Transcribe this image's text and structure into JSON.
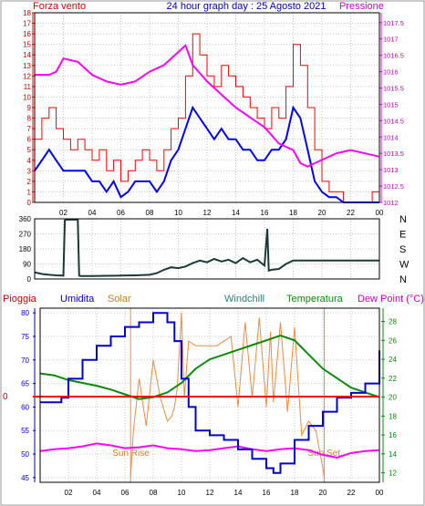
{
  "colors": {
    "wind": "#ff0000",
    "gust": "#0000ff",
    "pressure": "#ff00ff",
    "direction": "#1a3a3a",
    "rain": "#ff0000",
    "humidity": "#0000cc",
    "solar": "#f08a40",
    "windchill": "#2a8080",
    "temperature": "#0a8a0a",
    "dewpoint": "#ff00ff",
    "grid": "#c8c8c8",
    "axis": "#000000",
    "frame": "#9a9a9a"
  },
  "chart_data": [
    {
      "type": "line",
      "title": "24 hour graph day : 25 Agosto 2021",
      "left_label": "Forza vento",
      "right_label": "Pressione",
      "xlim": [
        0,
        24
      ],
      "x_ticks": [
        "02",
        "04",
        "06",
        "08",
        "10",
        "12",
        "14",
        "16",
        "18",
        "20",
        "22",
        "00"
      ],
      "ylim": [
        0,
        18
      ],
      "y_ticks": [
        "0",
        "1",
        "2",
        "3",
        "4",
        "5",
        "6",
        "7",
        "8",
        "9",
        "10",
        "11",
        "12",
        "13",
        "14",
        "15",
        "16",
        "17",
        "18"
      ],
      "y2lim": [
        1012,
        1017.8
      ],
      "y2_ticks": [
        "1012",
        "1012.5",
        "1013",
        "1013.5",
        "1014",
        "1014.5",
        "1015",
        "1015.5",
        "1016",
        "1016.5",
        "1017",
        "1017.5"
      ],
      "grid": true,
      "series": [
        {
          "key": "wind",
          "x": [
            0,
            0.5,
            1,
            1.5,
            2,
            2.5,
            3,
            3.5,
            4,
            4.5,
            5,
            5.5,
            6,
            6.5,
            7,
            7.5,
            8,
            8.5,
            9,
            9.5,
            10,
            10.5,
            11,
            11.5,
            12,
            12.5,
            13,
            13.5,
            14,
            14.5,
            15,
            15.5,
            16,
            16.5,
            17,
            17.5,
            18,
            18.5,
            19,
            19.5,
            20,
            20.5,
            21,
            21.5,
            22,
            22.5,
            23,
            23.5,
            24
          ],
          "y": [
            6,
            8,
            9,
            7,
            6,
            5,
            6,
            5,
            4,
            5,
            3,
            4,
            2,
            3,
            4,
            5,
            4,
            3,
            5,
            7,
            8,
            12,
            16,
            14,
            12,
            11,
            13,
            12,
            11,
            10,
            9,
            8,
            7,
            9,
            8,
            11,
            15,
            13,
            9,
            5,
            2,
            1,
            1,
            0,
            0,
            0,
            0,
            1,
            1
          ]
        },
        {
          "key": "gust",
          "x": [
            0,
            0.5,
            1,
            1.5,
            2,
            2.5,
            3,
            3.5,
            4,
            4.5,
            5,
            5.5,
            6,
            6.5,
            7,
            7.5,
            8,
            8.5,
            9,
            9.5,
            10,
            10.5,
            11,
            11.5,
            12,
            12.5,
            13,
            13.5,
            14,
            14.5,
            15,
            15.5,
            16,
            16.5,
            17,
            17.5,
            18,
            18.5,
            19,
            19.5,
            20,
            20.5,
            21,
            21.5,
            22,
            22.5,
            23,
            23.5,
            24
          ],
          "y": [
            3,
            4,
            5,
            4,
            3,
            3,
            3,
            3,
            2,
            2,
            1,
            2,
            0.5,
            1,
            2,
            2,
            2,
            1,
            2,
            4,
            5,
            7,
            9,
            8,
            7,
            6,
            7,
            6,
            6,
            5,
            5,
            4,
            4,
            5,
            5,
            6,
            9,
            8,
            5,
            2,
            1,
            0.5,
            0.5,
            0,
            0,
            0,
            0,
            0,
            0
          ]
        },
        {
          "key": "pressure",
          "x": [
            0,
            1,
            1.5,
            2,
            3,
            4,
            5,
            6,
            7,
            8,
            9,
            10,
            10.5,
            11,
            12,
            13,
            14,
            15,
            16,
            17,
            18,
            18.5,
            19,
            20,
            21,
            22,
            23,
            24
          ],
          "y": [
            1015.9,
            1015.9,
            1016.0,
            1016.4,
            1016.3,
            1015.9,
            1015.7,
            1015.6,
            1015.7,
            1016.0,
            1016.2,
            1016.6,
            1016.8,
            1016.2,
            1015.7,
            1015.3,
            1014.9,
            1014.6,
            1014.3,
            1013.8,
            1013.6,
            1013.2,
            1013.1,
            1013.3,
            1013.5,
            1013.6,
            1013.5,
            1013.4
          ]
        }
      ]
    },
    {
      "type": "line",
      "title": "",
      "xlim": [
        0,
        24
      ],
      "ylim": [
        0,
        360
      ],
      "y_ticks": [
        "0",
        "90",
        "180",
        "270",
        "360"
      ],
      "y2_ticks": [
        "N",
        "W",
        "S",
        "E",
        "N"
      ],
      "grid": true,
      "series": [
        {
          "key": "direction",
          "x": [
            0,
            0.5,
            1,
            1.5,
            2,
            2.1,
            2.2,
            3,
            3.1,
            3.2,
            4,
            5,
            6,
            7,
            8,
            8.5,
            9,
            9.5,
            10,
            10.5,
            11,
            11.5,
            12,
            12.5,
            13,
            13.5,
            14,
            14.5,
            15,
            15.5,
            16,
            16.2,
            16.3,
            16.5,
            17,
            17.5,
            18,
            19,
            20,
            21,
            22,
            23,
            24
          ],
          "y": [
            40,
            30,
            25,
            22,
            20,
            350,
            355,
            355,
            20,
            18,
            18,
            19,
            20,
            22,
            25,
            35,
            55,
            70,
            65,
            75,
            95,
            110,
            100,
            120,
            105,
            115,
            95,
            125,
            100,
            115,
            80,
            300,
            50,
            55,
            60,
            90,
            110,
            110,
            110,
            110,
            110,
            110,
            110
          ]
        }
      ]
    },
    {
      "type": "line",
      "title": "",
      "legend": [
        "Pioggia",
        "Umidita",
        "Solar",
        "Windchill",
        "Temperatura",
        "Dew Point (°C)"
      ],
      "xlim": [
        0,
        24
      ],
      "x_ticks": [
        "02",
        "04",
        "06",
        "08",
        "10",
        "12",
        "14",
        "16",
        "18",
        "20",
        "22",
        "00"
      ],
      "ylim": [
        44,
        81
      ],
      "y_ticks": [
        "45",
        "50",
        "55",
        "60",
        "65",
        "70",
        "75",
        "80"
      ],
      "y2lim": [
        11,
        29.4
      ],
      "y2_ticks": [
        "12",
        "14",
        "16",
        "18",
        "20",
        "22",
        "24",
        "26",
        "28"
      ],
      "rain_tick": "0",
      "sunrise_label": "Sun Rise",
      "sunrise_hour": 6.4,
      "sunset_label": "Sun Set",
      "sunset_hour": 20.1,
      "grid": true,
      "series": [
        {
          "key": "humidity",
          "x": [
            0,
            1,
            1.5,
            2,
            3,
            4,
            5,
            6,
            7,
            8,
            9,
            9.5,
            10,
            10.5,
            11,
            12,
            13,
            14,
            15,
            16,
            16.5,
            17,
            18,
            19,
            20,
            21,
            22,
            23,
            24
          ],
          "y": [
            61,
            61,
            62,
            66,
            70,
            73,
            75,
            77,
            78,
            80,
            78,
            74,
            66,
            60,
            55,
            54,
            53,
            51,
            49,
            47,
            46,
            48,
            53,
            56,
            59,
            62,
            63,
            65,
            72
          ]
        },
        {
          "key": "temperature",
          "x": [
            0,
            1,
            2,
            3,
            4,
            5,
            6,
            7,
            8,
            9,
            10,
            11,
            12,
            13,
            14,
            15,
            16,
            17,
            18,
            19,
            20,
            21,
            22,
            23,
            24
          ],
          "y": [
            22.5,
            22.3,
            21.8,
            21.5,
            21.2,
            20.8,
            20.3,
            19.8,
            20.0,
            20.5,
            21.5,
            23.0,
            24.0,
            24.5,
            25.0,
            25.5,
            26.0,
            26.5,
            26.0,
            24.5,
            23.0,
            22.0,
            21.0,
            20.5,
            20.0
          ]
        },
        {
          "key": "dewpoint",
          "x": [
            0,
            1,
            2,
            3,
            4,
            5,
            6,
            7,
            8,
            9,
            10,
            11,
            12,
            13,
            14,
            15,
            16,
            17,
            18,
            19,
            20,
            21,
            22,
            23,
            24
          ],
          "y": [
            14.3,
            14.5,
            14.6,
            14.8,
            15.1,
            14.9,
            14.6,
            14.7,
            14.9,
            14.6,
            14.5,
            14.3,
            14.4,
            14.6,
            14.8,
            14.5,
            14.3,
            14.5,
            14.6,
            14.4,
            13.9,
            13.6,
            14.1,
            14.3,
            14.4
          ]
        },
        {
          "key": "solar",
          "x": [
            6.4,
            6.6,
            7,
            7.5,
            8,
            8.5,
            9,
            9.3,
            9.5,
            9.7,
            10,
            10.2,
            10.5,
            11,
            11.5,
            12,
            12.5,
            13,
            13.5,
            14,
            14.5,
            15,
            15.5,
            16,
            16.3,
            16.5,
            17,
            17.5,
            18,
            18.5,
            19,
            19.5,
            20,
            20.1
          ],
          "y": [
            45,
            55,
            66,
            56,
            70,
            62,
            57,
            58,
            60,
            64,
            80,
            62,
            74,
            73,
            73,
            73,
            73,
            74,
            75,
            60,
            78,
            62,
            79,
            60,
            76,
            61,
            78,
            59,
            77,
            54,
            57,
            55,
            47,
            45
          ]
        }
      ]
    }
  ]
}
